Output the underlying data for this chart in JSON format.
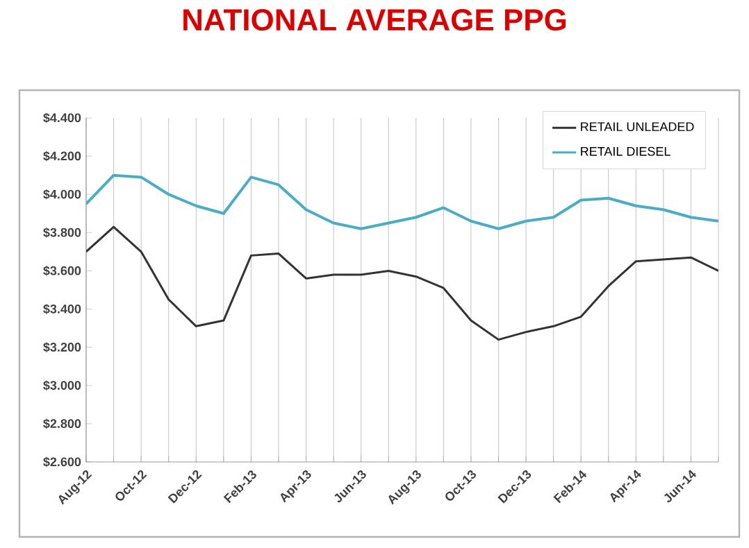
{
  "chart_data": {
    "type": "line",
    "title": "NATIONAL AVERAGE PPG",
    "categories": [
      "Aug-12",
      null,
      "Oct-12",
      null,
      "Dec-12",
      null,
      "Feb-13",
      null,
      "Apr-13",
      null,
      "Jun-13",
      null,
      "Aug-13",
      null,
      "Oct-13",
      null,
      "Dec-13",
      null,
      "Feb-14",
      null,
      "Apr-14",
      null,
      "Jun-14",
      null
    ],
    "series": [
      {
        "name": "RETAIL UNLEADED",
        "color": "#333333",
        "values": [
          3.7,
          3.83,
          3.7,
          3.45,
          3.31,
          3.34,
          3.68,
          3.69,
          3.56,
          3.58,
          3.58,
          3.6,
          3.57,
          3.51,
          3.34,
          3.24,
          3.28,
          3.31,
          3.36,
          3.52,
          3.65,
          3.66,
          3.67,
          3.6
        ]
      },
      {
        "name": "RETAIL DIESEL",
        "color": "#4bacc6",
        "values": [
          3.95,
          4.1,
          4.09,
          4.0,
          3.94,
          3.9,
          4.09,
          4.05,
          3.92,
          3.85,
          3.82,
          3.85,
          3.88,
          3.93,
          3.86,
          3.82,
          3.86,
          3.88,
          3.97,
          3.98,
          3.94,
          3.92,
          3.88,
          3.86
        ]
      }
    ],
    "ylim": [
      2.6,
      4.4
    ],
    "yticks": [
      {
        "value": 2.6,
        "label": "$2.600"
      },
      {
        "value": 2.8,
        "label": "$2.800"
      },
      {
        "value": 3.0,
        "label": "$3.000"
      },
      {
        "value": 3.2,
        "label": "$3.200"
      },
      {
        "value": 3.4,
        "label": "$3.400"
      },
      {
        "value": 3.6,
        "label": "$3.600"
      },
      {
        "value": 3.8,
        "label": "$3.800"
      },
      {
        "value": 4.0,
        "label": "$4.000"
      },
      {
        "value": 4.2,
        "label": "$4.200"
      },
      {
        "value": 4.4,
        "label": "$4.400"
      }
    ],
    "grid": "x",
    "legend": "top right",
    "marker": "none",
    "line_style": "solid"
  }
}
